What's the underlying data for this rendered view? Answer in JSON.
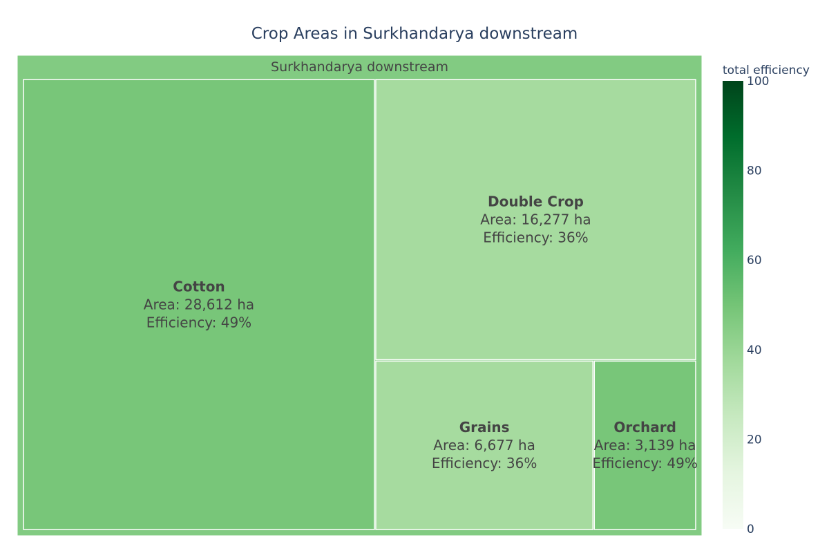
{
  "chart_data": {
    "type": "treemap",
    "title": "Crop Areas in Surkhandarya downstream",
    "root": {
      "label": "Surkhandarya downstream",
      "efficiency": 46
    },
    "tiles": [
      {
        "label": "Cotton",
        "area": 28612,
        "area_text": "Area: 28,612 ha",
        "efficiency": 49,
        "efficiency_text": "Efficiency: 49%"
      },
      {
        "label": "Double Crop",
        "area": 16277,
        "area_text": "Area: 16,277 ha",
        "efficiency": 36,
        "efficiency_text": "Efficiency: 36%"
      },
      {
        "label": "Grains",
        "area": 6677,
        "area_text": "Area: 6,677 ha",
        "efficiency": 36,
        "efficiency_text": "Efficiency: 36%"
      },
      {
        "label": "Orchard",
        "area": 3139,
        "area_text": "Area: 3,139 ha",
        "efficiency": 49,
        "efficiency_text": "Efficiency: 49%"
      }
    ],
    "colorbar": {
      "title": "total efficiency",
      "range": [
        0,
        100
      ],
      "ticks": [
        0,
        20,
        40,
        60,
        80,
        100
      ],
      "colorscale": [
        "#f7fcf5",
        "#e5f5e0",
        "#c7e9c0",
        "#a1d99b",
        "#74c476",
        "#41ab5d",
        "#238b45",
        "#006d2c",
        "#00441b"
      ]
    },
    "colors": {
      "title": "#2a3f5f",
      "label": "#444444",
      "tile_border": "#ffffff"
    }
  }
}
